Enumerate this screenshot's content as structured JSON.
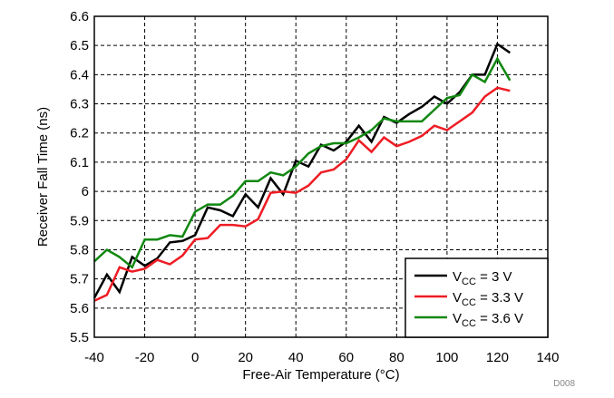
{
  "chart_data": {
    "type": "line",
    "xlabel": "Free-Air Temperature (°C)",
    "ylabel": "Receiver Fall Time (ns)",
    "xlim": [
      -40,
      140
    ],
    "ylim": [
      5.5,
      6.6
    ],
    "xticks": [
      -40,
      -20,
      0,
      20,
      40,
      60,
      80,
      100,
      120,
      140
    ],
    "yticks": [
      5.5,
      5.6,
      5.7,
      5.8,
      5.9,
      6,
      6.1,
      6.2,
      6.3,
      6.4,
      6.5,
      6.6
    ],
    "grid": true,
    "legend_position": "bottom-right",
    "figure_id": "D008",
    "series": [
      {
        "name": "VCC = 3 V",
        "name_base": "V",
        "name_sub": "CC",
        "name_rest": " = 3 V",
        "color": "#000000",
        "x": [
          -40,
          -35,
          -30,
          -25,
          -20,
          -15,
          -10,
          -5,
          0,
          5,
          10,
          15,
          20,
          25,
          30,
          35,
          40,
          45,
          50,
          55,
          60,
          65,
          70,
          75,
          80,
          85,
          90,
          95,
          100,
          105,
          110,
          115,
          120,
          125
        ],
        "y": [
          5.635,
          5.715,
          5.655,
          5.775,
          5.745,
          5.77,
          5.825,
          5.83,
          5.85,
          5.945,
          5.935,
          5.915,
          5.99,
          5.945,
          6.045,
          5.99,
          6.105,
          6.085,
          6.16,
          6.14,
          6.17,
          6.225,
          6.17,
          6.255,
          6.235,
          6.265,
          6.29,
          6.325,
          6.3,
          6.34,
          6.4,
          6.4,
          6.505,
          6.475
        ]
      },
      {
        "name": "VCC = 3.3 V",
        "name_base": "V",
        "name_sub": "CC",
        "name_rest": " = 3.3 V",
        "color": "#ee1c24",
        "x": [
          -40,
          -35,
          -30,
          -25,
          -20,
          -15,
          -10,
          -5,
          0,
          5,
          10,
          15,
          20,
          25,
          30,
          35,
          40,
          45,
          50,
          55,
          60,
          65,
          70,
          75,
          80,
          85,
          90,
          95,
          100,
          105,
          110,
          115,
          120,
          125
        ],
        "y": [
          5.625,
          5.645,
          5.74,
          5.725,
          5.735,
          5.765,
          5.75,
          5.78,
          5.835,
          5.84,
          5.885,
          5.885,
          5.88,
          5.905,
          5.995,
          6.0,
          5.995,
          6.02,
          6.065,
          6.075,
          6.11,
          6.175,
          6.135,
          6.185,
          6.155,
          6.17,
          6.19,
          6.225,
          6.21,
          6.24,
          6.27,
          6.325,
          6.355,
          6.345
        ]
      },
      {
        "name": "VCC = 3.6 V",
        "name_base": "V",
        "name_sub": "CC",
        "name_rest": " = 3.6 V",
        "color": "#118811",
        "x": [
          -40,
          -35,
          -30,
          -25,
          -20,
          -15,
          -10,
          -5,
          0,
          5,
          10,
          15,
          20,
          25,
          30,
          35,
          40,
          45,
          50,
          55,
          60,
          65,
          70,
          75,
          80,
          85,
          90,
          95,
          100,
          105,
          110,
          115,
          120,
          125
        ],
        "y": [
          5.76,
          5.8,
          5.775,
          5.74,
          5.835,
          5.835,
          5.85,
          5.845,
          5.93,
          5.955,
          5.955,
          5.985,
          6.035,
          6.035,
          6.065,
          6.055,
          6.085,
          6.13,
          6.155,
          6.165,
          6.165,
          6.185,
          6.21,
          6.25,
          6.24,
          6.24,
          6.24,
          6.28,
          6.32,
          6.33,
          6.4,
          6.375,
          6.455,
          6.38
        ]
      }
    ]
  }
}
